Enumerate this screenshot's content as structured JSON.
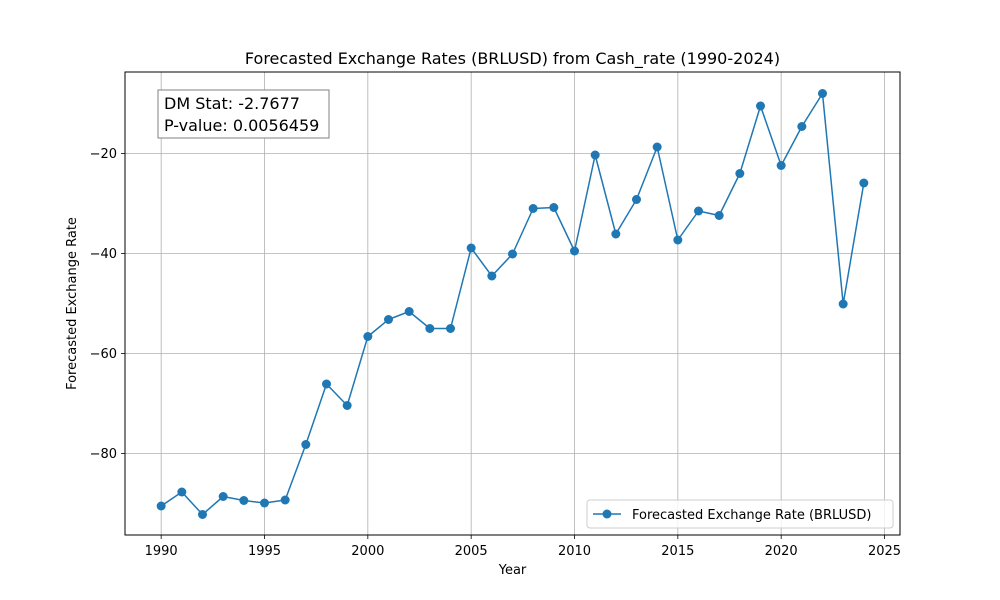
{
  "chart_data": {
    "type": "line",
    "title": "Forecasted Exchange Rates (BRLUSD) from Cash_rate (1990-2024)",
    "xlabel": "Year",
    "ylabel": "Forecasted Exchange Rate",
    "xlim": [
      1988.25,
      2025.75
    ],
    "ylim": [
      -96.3,
      -3.7
    ],
    "x_ticks": [
      1990,
      1995,
      2000,
      2005,
      2010,
      2015,
      2020,
      2025
    ],
    "y_ticks": [
      -80,
      -60,
      -40,
      -20
    ],
    "grid": true,
    "legend_position": "lower right",
    "annotation": [
      "DM Stat: -2.7677",
      "P-value: 0.0056459"
    ],
    "series": [
      {
        "name": "Forecasted Exchange Rate (BRLUSD)",
        "color": "#1f77b4",
        "marker": "circle",
        "x": [
          1990,
          1991,
          1992,
          1993,
          1994,
          1995,
          1996,
          1997,
          1998,
          1999,
          2000,
          2001,
          2002,
          2003,
          2004,
          2005,
          2006,
          2007,
          2008,
          2009,
          2010,
          2011,
          2012,
          2013,
          2014,
          2015,
          2016,
          2017,
          2018,
          2019,
          2020,
          2021,
          2022,
          2023,
          2024
        ],
        "y": [
          -90.5,
          -87.7,
          -92.2,
          -88.6,
          -89.4,
          -89.9,
          -89.3,
          -78.2,
          -66.1,
          -70.4,
          -56.6,
          -53.2,
          -51.6,
          -55.0,
          -55.0,
          -38.9,
          -44.5,
          -40.1,
          -31.0,
          -30.8,
          -39.5,
          -20.3,
          -36.1,
          -29.2,
          -18.7,
          -37.3,
          -31.5,
          -32.4,
          -24.0,
          -10.5,
          -22.4,
          -14.6,
          -8.0,
          -50.1,
          -25.9
        ]
      }
    ]
  }
}
